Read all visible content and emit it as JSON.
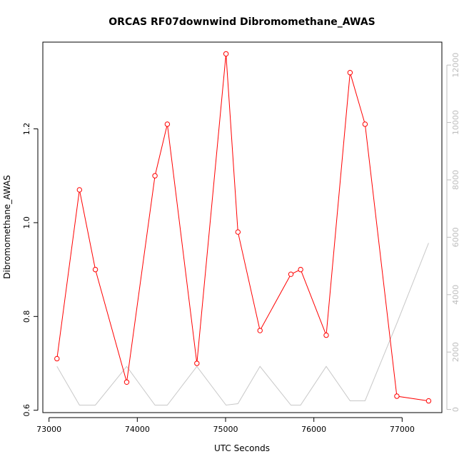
{
  "chart_data": {
    "type": "line",
    "title": "ORCAS RF07downwind Dibromomethane_AWAS",
    "xlabel": "UTC Seconds",
    "ylabel": "Dibromomethane_AWAS",
    "xlim": [
      72930,
      77450
    ],
    "ylim": [
      0.595,
      1.385
    ],
    "y2lim": [
      -110,
      12800
    ],
    "x_ticks": [
      73000,
      74000,
      75000,
      76000,
      77000
    ],
    "x_tick_labels": [
      "73000",
      "74000",
      "75000",
      "76000",
      "77000"
    ],
    "y_ticks": [
      0.6,
      0.8,
      1.0,
      1.2
    ],
    "y_tick_labels": [
      "0.6",
      "0.8",
      "1.0",
      "1.2"
    ],
    "y2_ticks": [
      0,
      2000,
      4000,
      6000,
      8000,
      10000,
      12000
    ],
    "y2_tick_labels": [
      "0",
      "2000",
      "4000",
      "6000",
      "8000",
      "10000",
      "12000"
    ],
    "grid": false,
    "series": [
      {
        "color": "#ff0000",
        "axis": "left",
        "marker": "circle",
        "x": [
          73090,
          73345,
          73525,
          73880,
          74200,
          74340,
          74675,
          75005,
          75140,
          75390,
          75740,
          75850,
          76140,
          76410,
          76580,
          76940,
          77300
        ],
        "y": [
          0.71,
          1.07,
          0.9,
          0.66,
          1.1,
          1.21,
          0.7,
          1.36,
          0.98,
          0.77,
          0.89,
          0.9,
          0.76,
          1.32,
          1.21,
          0.63,
          0.62
        ]
      },
      {
        "color": "#c8c8c8",
        "axis": "right",
        "marker": "none",
        "x": [
          73090,
          73345,
          73525,
          73880,
          74200,
          74340,
          74675,
          75005,
          75140,
          75390,
          75740,
          75850,
          76140,
          76410,
          76580,
          76940,
          77300
        ],
        "y": [
          1500,
          150,
          150,
          1500,
          150,
          150,
          1500,
          150,
          200,
          1500,
          150,
          150,
          1500,
          300,
          300,
          3000,
          5800
        ]
      }
    ]
  }
}
